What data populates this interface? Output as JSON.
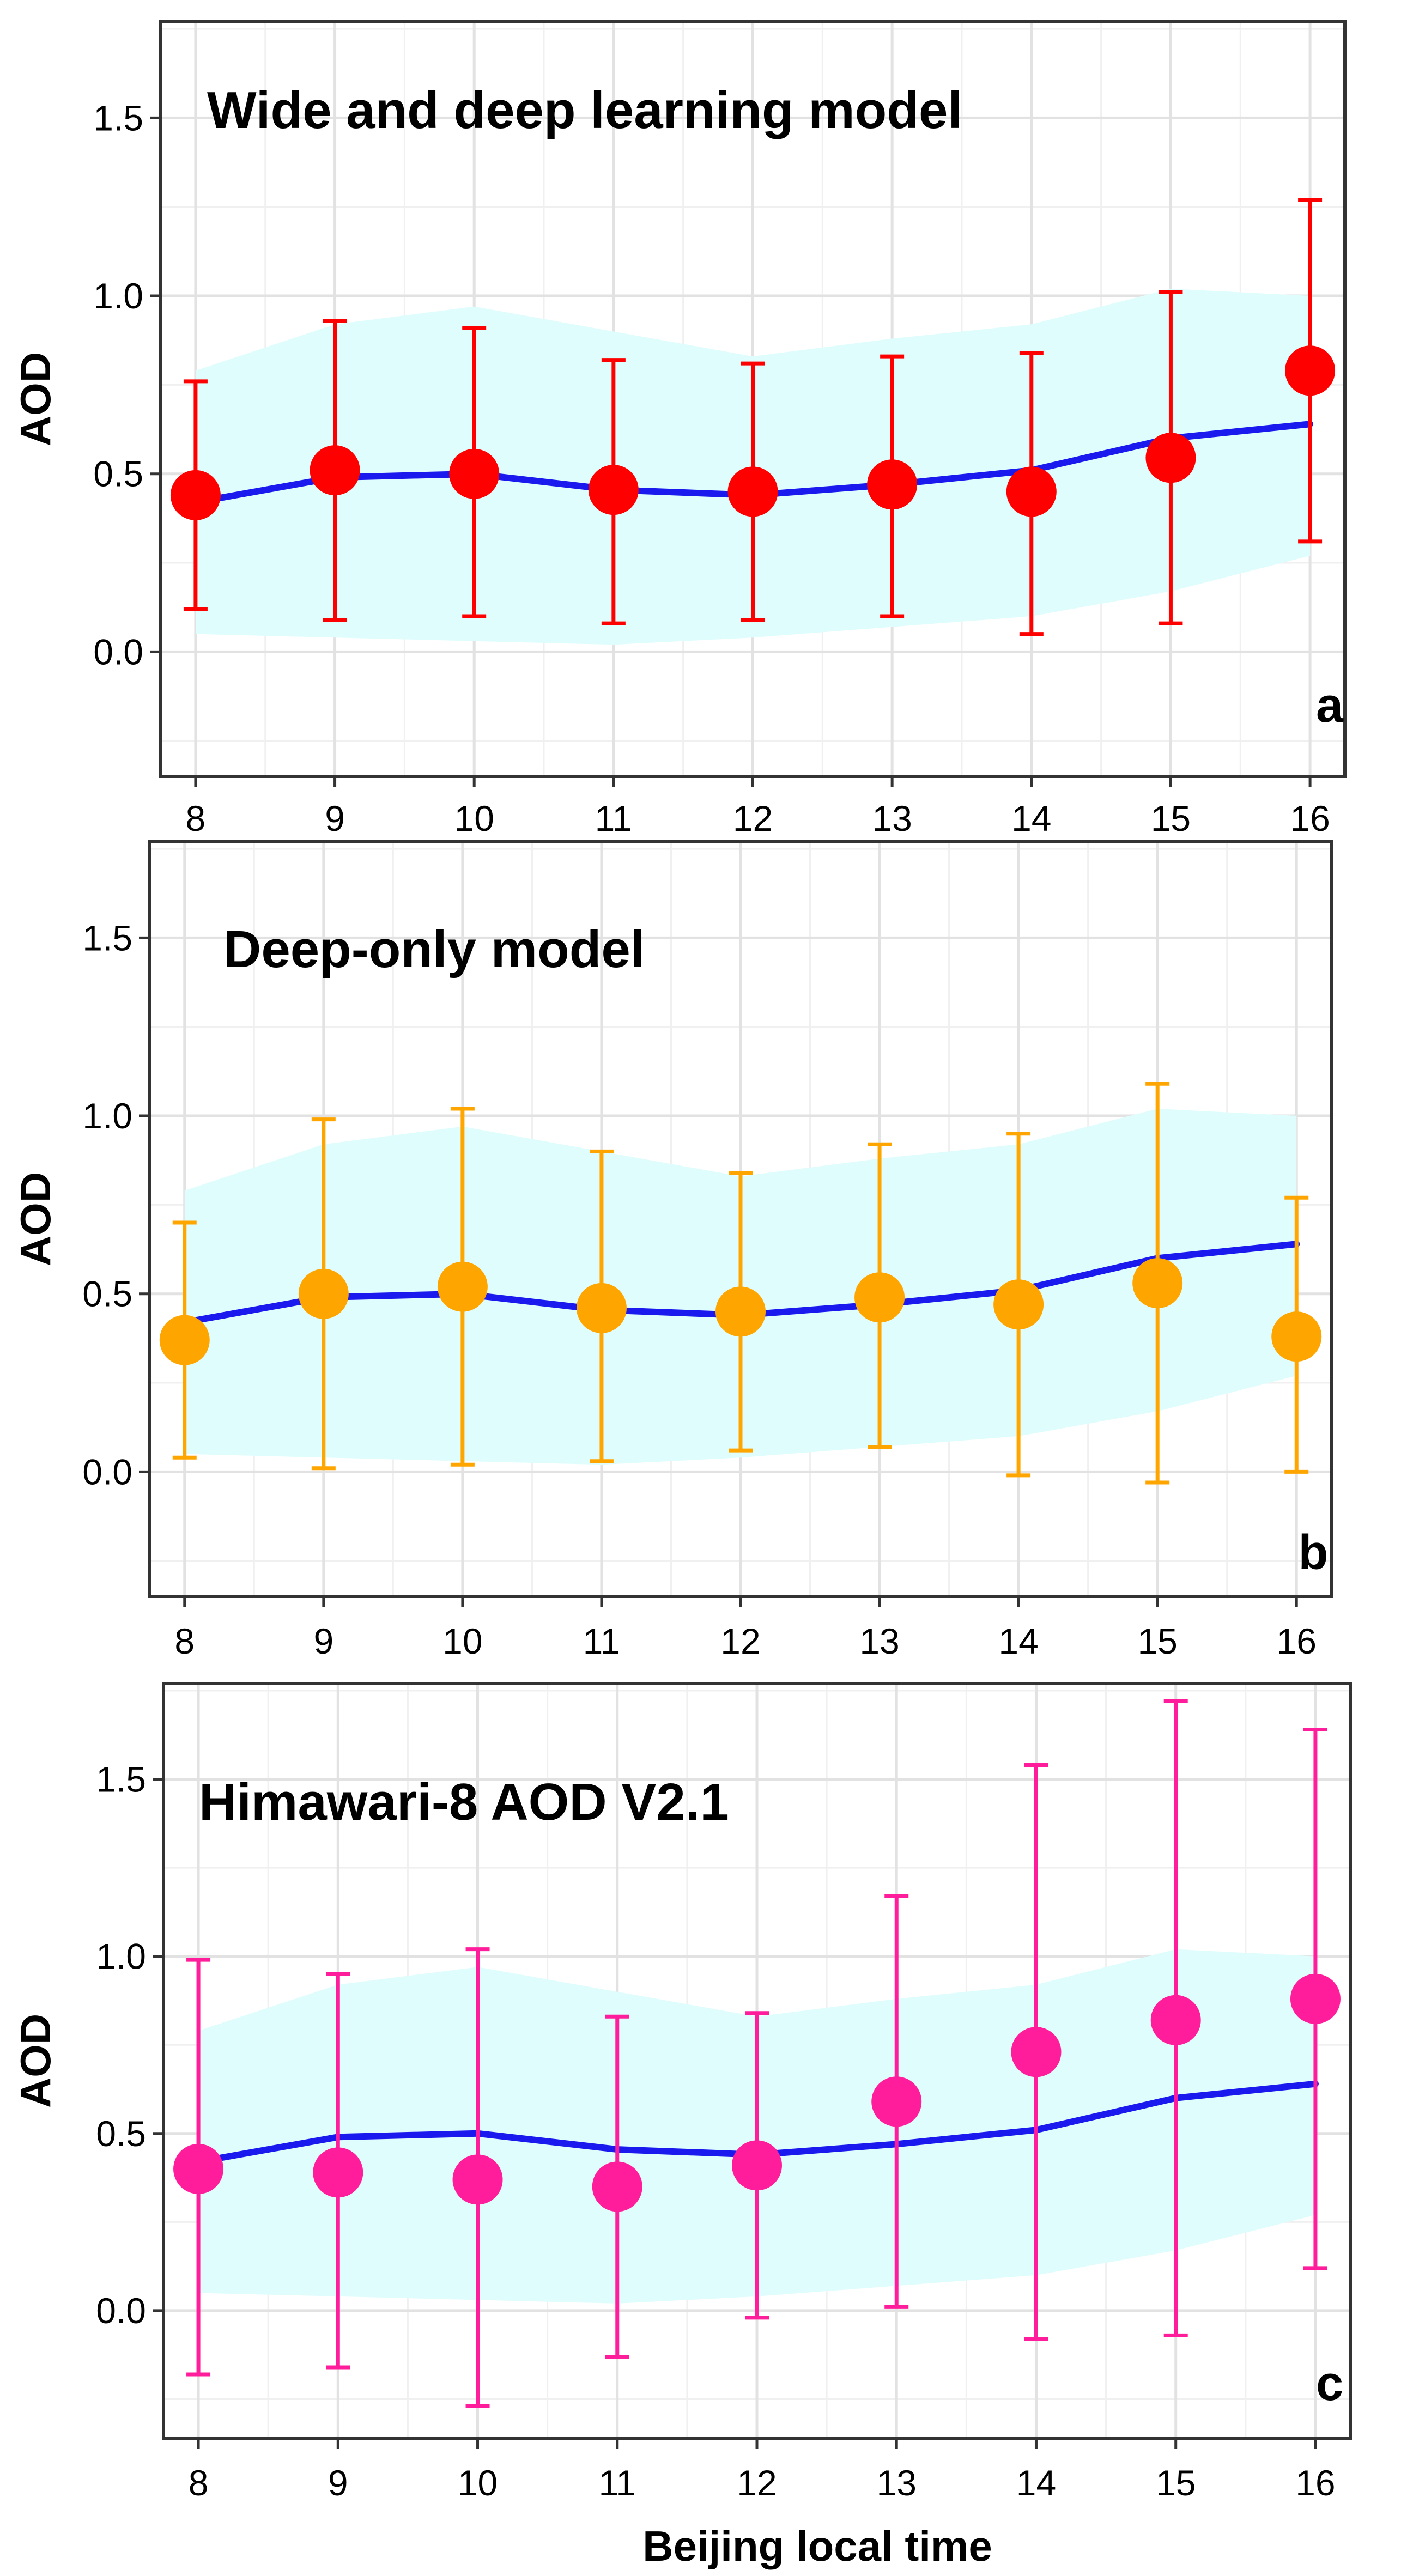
{
  "figure": {
    "xlabel": "Beijing local time"
  },
  "chart_data": [
    {
      "id": "a",
      "type": "line",
      "title": "Wide and deep learning model",
      "panel_label": "a",
      "ylabel": "AOD",
      "xlabel": "",
      "xlim": [
        7.75,
        16.25
      ],
      "ylim": [
        -0.35,
        1.77
      ],
      "xticks": [
        8,
        9,
        10,
        11,
        12,
        13,
        14,
        15,
        16
      ],
      "yticks": [
        0.0,
        0.5,
        1.0,
        1.5
      ],
      "ytick_labels": [
        "0.0",
        "0.5",
        "1.0",
        "1.5"
      ],
      "grid": true,
      "colors": {
        "points": "#ff0000",
        "errorbars": "#ff0000",
        "line": "#1a1aee",
        "band": "#e0fdfd"
      },
      "x": [
        8,
        9,
        10,
        11,
        12,
        13,
        14,
        15,
        16
      ],
      "reference_line": [
        0.42,
        0.49,
        0.5,
        0.455,
        0.44,
        0.47,
        0.51,
        0.6,
        0.64
      ],
      "band_upper": [
        0.79,
        0.92,
        0.97,
        0.9,
        0.83,
        0.88,
        0.92,
        1.02,
        1.0
      ],
      "band_lower": [
        0.05,
        0.04,
        0.03,
        0.02,
        0.04,
        0.07,
        0.1,
        0.17,
        0.27
      ],
      "points": [
        0.44,
        0.51,
        0.5,
        0.455,
        0.45,
        0.47,
        0.45,
        0.545,
        0.79
      ],
      "err_upper": [
        0.76,
        0.93,
        0.91,
        0.82,
        0.81,
        0.83,
        0.84,
        1.01,
        1.27
      ],
      "err_lower": [
        0.12,
        0.09,
        0.1,
        0.08,
        0.09,
        0.1,
        0.05,
        0.08,
        0.31
      ]
    },
    {
      "id": "b",
      "type": "line",
      "title": "Deep-only model",
      "panel_label": "b",
      "ylabel": "AOD",
      "xlabel": "",
      "xlim": [
        7.75,
        16.25
      ],
      "ylim": [
        -0.35,
        1.77
      ],
      "xticks": [
        8,
        9,
        10,
        11,
        12,
        13,
        14,
        15,
        16
      ],
      "yticks": [
        0.0,
        0.5,
        1.0,
        1.5
      ],
      "ytick_labels": [
        "0.0",
        "0.5",
        "1.0",
        "1.5"
      ],
      "grid": true,
      "colors": {
        "points": "#ffa500",
        "errorbars": "#ffa500",
        "line": "#1a1aee",
        "band": "#e0fdfd"
      },
      "x": [
        8,
        9,
        10,
        11,
        12,
        13,
        14,
        15,
        16
      ],
      "reference_line": [
        0.42,
        0.49,
        0.5,
        0.455,
        0.44,
        0.47,
        0.51,
        0.6,
        0.64
      ],
      "band_upper": [
        0.79,
        0.92,
        0.97,
        0.9,
        0.83,
        0.88,
        0.92,
        1.02,
        1.0
      ],
      "band_lower": [
        0.05,
        0.04,
        0.03,
        0.02,
        0.04,
        0.07,
        0.1,
        0.17,
        0.27
      ],
      "points": [
        0.37,
        0.5,
        0.52,
        0.46,
        0.45,
        0.49,
        0.47,
        0.53,
        0.38
      ],
      "err_upper": [
        0.7,
        0.99,
        1.02,
        0.9,
        0.84,
        0.92,
        0.95,
        1.09,
        0.77
      ],
      "err_lower": [
        0.04,
        0.01,
        0.02,
        0.03,
        0.06,
        0.07,
        -0.01,
        -0.03,
        0.0
      ]
    },
    {
      "id": "c",
      "type": "line",
      "title": "Himawari-8 AOD V2.1",
      "panel_label": "c",
      "ylabel": "AOD",
      "xlabel": "Beijing local time",
      "xlim": [
        7.75,
        16.25
      ],
      "ylim": [
        -0.36,
        1.77
      ],
      "xticks": [
        8,
        9,
        10,
        11,
        12,
        13,
        14,
        15,
        16
      ],
      "yticks": [
        0.0,
        0.5,
        1.0,
        1.5
      ],
      "ytick_labels": [
        "0.0",
        "0.5",
        "1.0",
        "1.5"
      ],
      "grid": true,
      "colors": {
        "points": "#ff1d9b",
        "errorbars": "#ff1d9b",
        "line": "#1a1aee",
        "band": "#e0fdfd"
      },
      "x": [
        8,
        9,
        10,
        11,
        12,
        13,
        14,
        15,
        16
      ],
      "reference_line": [
        0.42,
        0.49,
        0.5,
        0.455,
        0.44,
        0.47,
        0.51,
        0.6,
        0.64
      ],
      "band_upper": [
        0.79,
        0.92,
        0.97,
        0.9,
        0.83,
        0.88,
        0.92,
        1.02,
        1.0
      ],
      "band_lower": [
        0.05,
        0.04,
        0.03,
        0.02,
        0.04,
        0.07,
        0.1,
        0.17,
        0.27
      ],
      "points": [
        0.4,
        0.39,
        0.37,
        0.35,
        0.41,
        0.59,
        0.73,
        0.82,
        0.88
      ],
      "err_upper": [
        0.99,
        0.95,
        1.02,
        0.83,
        0.84,
        1.17,
        1.54,
        1.72,
        1.64
      ],
      "err_lower": [
        -0.18,
        -0.16,
        -0.27,
        -0.13,
        -0.02,
        0.01,
        -0.08,
        -0.07,
        0.12
      ]
    }
  ]
}
